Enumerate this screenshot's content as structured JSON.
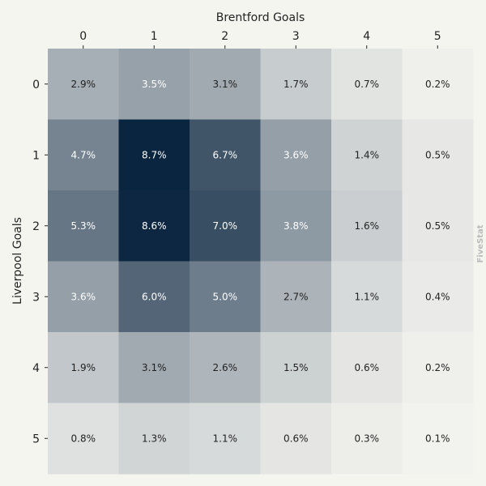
{
  "chart_data": {
    "type": "heatmap",
    "xlabel": "Brentford Goals",
    "ylabel": "Liverpool Goals",
    "x_categories": [
      "0",
      "1",
      "2",
      "3",
      "4",
      "5"
    ],
    "y_categories": [
      "0",
      "1",
      "2",
      "3",
      "4",
      "5"
    ],
    "value_format": "%",
    "values": [
      [
        2.9,
        3.5,
        3.1,
        1.7,
        0.7,
        0.2
      ],
      [
        4.7,
        8.7,
        6.7,
        3.6,
        1.4,
        0.5
      ],
      [
        5.3,
        8.6,
        7.0,
        3.8,
        1.6,
        0.5
      ],
      [
        3.6,
        6.0,
        5.0,
        2.7,
        1.1,
        0.4
      ],
      [
        1.9,
        3.1,
        2.6,
        1.5,
        0.6,
        0.2
      ],
      [
        0.8,
        1.3,
        1.1,
        0.6,
        0.3,
        0.1
      ]
    ],
    "x_axis_position": "top",
    "colormap": {
      "low": "#f2f2ee",
      "high": "#0a2540"
    },
    "watermark": "FiveStat"
  }
}
